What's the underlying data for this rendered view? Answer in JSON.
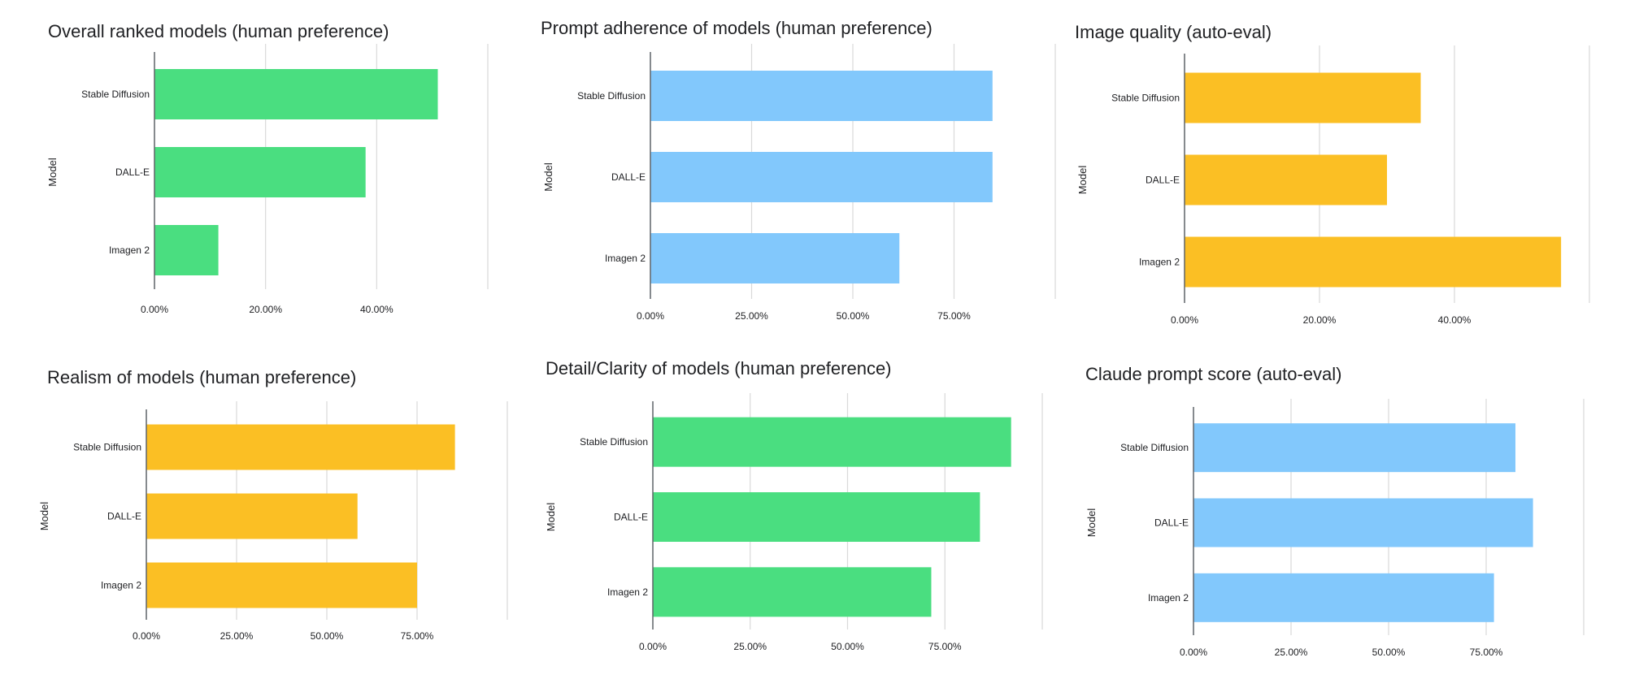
{
  "chart_data": [
    {
      "type": "bar",
      "orientation": "horizontal",
      "title": "Overall ranked models (human preference)",
      "ylabel": "Model",
      "categories": [
        "Stable Diffusion",
        "DALL-E",
        "Imagen 2"
      ],
      "values": [
        0.51,
        0.38,
        0.115
      ],
      "xticks": [
        "0.00%",
        "20.00%",
        "40.00%"
      ],
      "tick_values": [
        0,
        0.2,
        0.4
      ],
      "xlim": [
        0,
        0.6
      ],
      "color": "#4ade80",
      "grid": true,
      "legend": "none"
    },
    {
      "type": "bar",
      "orientation": "horizontal",
      "title": "Prompt adherence of models (human preference)",
      "ylabel": "Model",
      "categories": [
        "Stable Diffusion",
        "DALL-E",
        "Imagen 2"
      ],
      "values": [
        0.845,
        0.845,
        0.615
      ],
      "xticks": [
        "0.00%",
        "25.00%",
        "50.00%",
        "75.00%"
      ],
      "tick_values": [
        0,
        0.25,
        0.5,
        0.75
      ],
      "xlim": [
        0,
        1.0
      ],
      "color": "#82c8fc",
      "grid": true,
      "legend": "none"
    },
    {
      "type": "bar",
      "orientation": "horizontal",
      "title": "Image quality (auto-eval)",
      "ylabel": "Model",
      "categories": [
        "Stable Diffusion",
        "DALL-E",
        "Imagen 2"
      ],
      "values": [
        0.35,
        0.3,
        0.558
      ],
      "xticks": [
        "0.00%",
        "20.00%",
        "40.00%"
      ],
      "tick_values": [
        0,
        0.2,
        0.4
      ],
      "xlim": [
        0,
        0.6
      ],
      "color": "#fbbf24",
      "grid": true,
      "legend": "none"
    },
    {
      "type": "bar",
      "orientation": "horizontal",
      "title": "Realism of models (human preference)",
      "ylabel": "Model",
      "categories": [
        "Stable Diffusion",
        "DALL-E",
        "Imagen 2"
      ],
      "values": [
        0.855,
        0.585,
        0.75
      ],
      "xticks": [
        "0.00%",
        "25.00%",
        "50.00%",
        "75.00%"
      ],
      "tick_values": [
        0,
        0.25,
        0.5,
        0.75
      ],
      "xlim": [
        0,
        1.0
      ],
      "color": "#fbbf24",
      "grid": true,
      "legend": "none"
    },
    {
      "type": "bar",
      "orientation": "horizontal",
      "title": "Detail/Clarity of models (human preference)",
      "ylabel": "Model",
      "categories": [
        "Stable Diffusion",
        "DALL-E",
        "Imagen 2"
      ],
      "values": [
        0.92,
        0.84,
        0.715
      ],
      "xticks": [
        "0.00%",
        "25.00%",
        "50.00%",
        "75.00%"
      ],
      "tick_values": [
        0,
        0.25,
        0.5,
        0.75
      ],
      "xlim": [
        0,
        1.0
      ],
      "color": "#4ade80",
      "grid": true,
      "legend": "none"
    },
    {
      "type": "bar",
      "orientation": "horizontal",
      "title": "Claude prompt score (auto-eval)",
      "ylabel": "Model",
      "categories": [
        "Stable Diffusion",
        "DALL-E",
        "Imagen 2"
      ],
      "values": [
        0.825,
        0.87,
        0.77
      ],
      "xticks": [
        "0.00%",
        "25.00%",
        "50.00%",
        "75.00%"
      ],
      "tick_values": [
        0,
        0.25,
        0.5,
        0.75
      ],
      "xlim": [
        0,
        1.0
      ],
      "color": "#82c8fc",
      "grid": true,
      "legend": "none"
    }
  ]
}
